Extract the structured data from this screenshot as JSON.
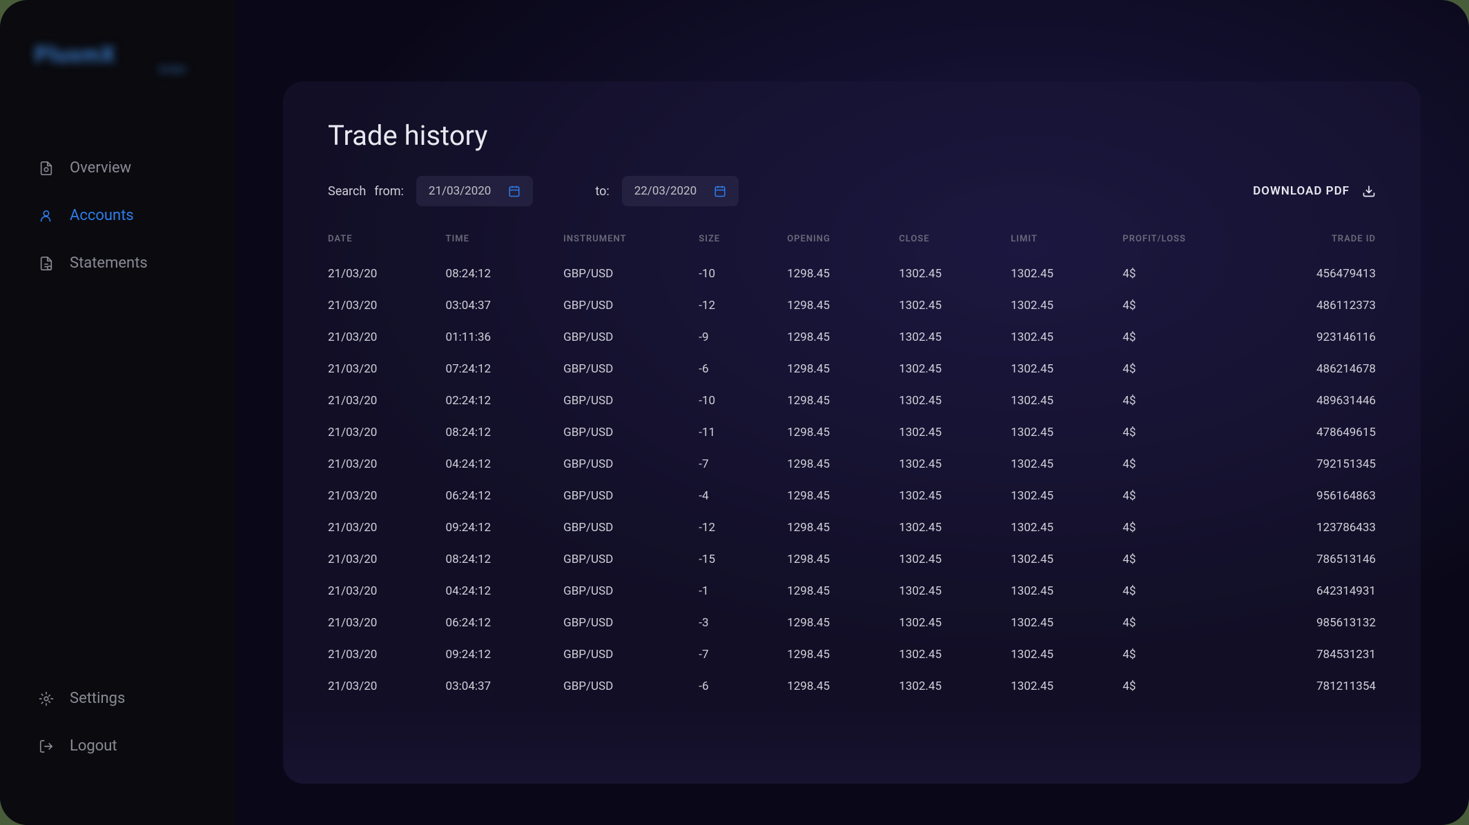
{
  "logo": {
    "name": "PlusmX",
    "subtitle": "broker"
  },
  "nav": {
    "items": [
      {
        "label": "Overview",
        "icon": "overview"
      },
      {
        "label": "Accounts",
        "icon": "accounts",
        "active": true
      },
      {
        "label": "Statements",
        "icon": "statements"
      }
    ],
    "bottom": [
      {
        "label": "Settings",
        "icon": "settings"
      },
      {
        "label": "Logout",
        "icon": "logout"
      }
    ]
  },
  "page": {
    "title": "Trade history"
  },
  "search": {
    "label": "Search",
    "from_label": "from:",
    "from_date": "21/03/2020",
    "to_label": "to:",
    "to_date": "22/03/2020"
  },
  "download": {
    "label": "DOWNLOAD PDF"
  },
  "table": {
    "columns": [
      "DATE",
      "TIME",
      "INSTRUMENT",
      "SIZE",
      "OPENING",
      "CLOSE",
      "LIMIT",
      "PROFIT/LOSS",
      "TRADE ID"
    ],
    "rows": [
      [
        "21/03/20",
        "08:24:12",
        "GBP/USD",
        "-10",
        "1298.45",
        "1302.45",
        "1302.45",
        "4$",
        "456479413"
      ],
      [
        "21/03/20",
        "03:04:37",
        "GBP/USD",
        "-12",
        "1298.45",
        "1302.45",
        "1302.45",
        "4$",
        "486112373"
      ],
      [
        "21/03/20",
        "01:11:36",
        "GBP/USD",
        "-9",
        "1298.45",
        "1302.45",
        "1302.45",
        "4$",
        "923146116"
      ],
      [
        "21/03/20",
        "07:24:12",
        "GBP/USD",
        "-6",
        "1298.45",
        "1302.45",
        "1302.45",
        "4$",
        "486214678"
      ],
      [
        "21/03/20",
        "02:24:12",
        "GBP/USD",
        "-10",
        "1298.45",
        "1302.45",
        "1302.45",
        "4$",
        "489631446"
      ],
      [
        "21/03/20",
        "08:24:12",
        "GBP/USD",
        "-11",
        "1298.45",
        "1302.45",
        "1302.45",
        "4$",
        "478649615"
      ],
      [
        "21/03/20",
        "04:24:12",
        "GBP/USD",
        "-7",
        "1298.45",
        "1302.45",
        "1302.45",
        "4$",
        "792151345"
      ],
      [
        "21/03/20",
        "06:24:12",
        "GBP/USD",
        "-4",
        "1298.45",
        "1302.45",
        "1302.45",
        "4$",
        "956164863"
      ],
      [
        "21/03/20",
        "09:24:12",
        "GBP/USD",
        "-12",
        "1298.45",
        "1302.45",
        "1302.45",
        "4$",
        "123786433"
      ],
      [
        "21/03/20",
        "08:24:12",
        "GBP/USD",
        "-15",
        "1298.45",
        "1302.45",
        "1302.45",
        "4$",
        "786513146"
      ],
      [
        "21/03/20",
        "04:24:12",
        "GBP/USD",
        "-1",
        "1298.45",
        "1302.45",
        "1302.45",
        "4$",
        "642314931"
      ],
      [
        "21/03/20",
        "06:24:12",
        "GBP/USD",
        "-3",
        "1298.45",
        "1302.45",
        "1302.45",
        "4$",
        "985613132"
      ],
      [
        "21/03/20",
        "09:24:12",
        "GBP/USD",
        "-7",
        "1298.45",
        "1302.45",
        "1302.45",
        "4$",
        "784531231"
      ],
      [
        "21/03/20",
        "03:04:37",
        "GBP/USD",
        "-6",
        "1298.45",
        "1302.45",
        "1302.45",
        "4$",
        "781211354"
      ]
    ]
  },
  "colors": {
    "background": "#0a0818",
    "sidebar_bg": "#0a0a0f",
    "card_bg": "rgba(30, 25, 60, 0.4)",
    "text_primary": "#e8e8f0",
    "text_secondary": "#8a8a95",
    "text_muted": "#6a6a7a",
    "accent": "#2e7de9",
    "input_bg": "rgba(50, 45, 80, 0.5)"
  }
}
